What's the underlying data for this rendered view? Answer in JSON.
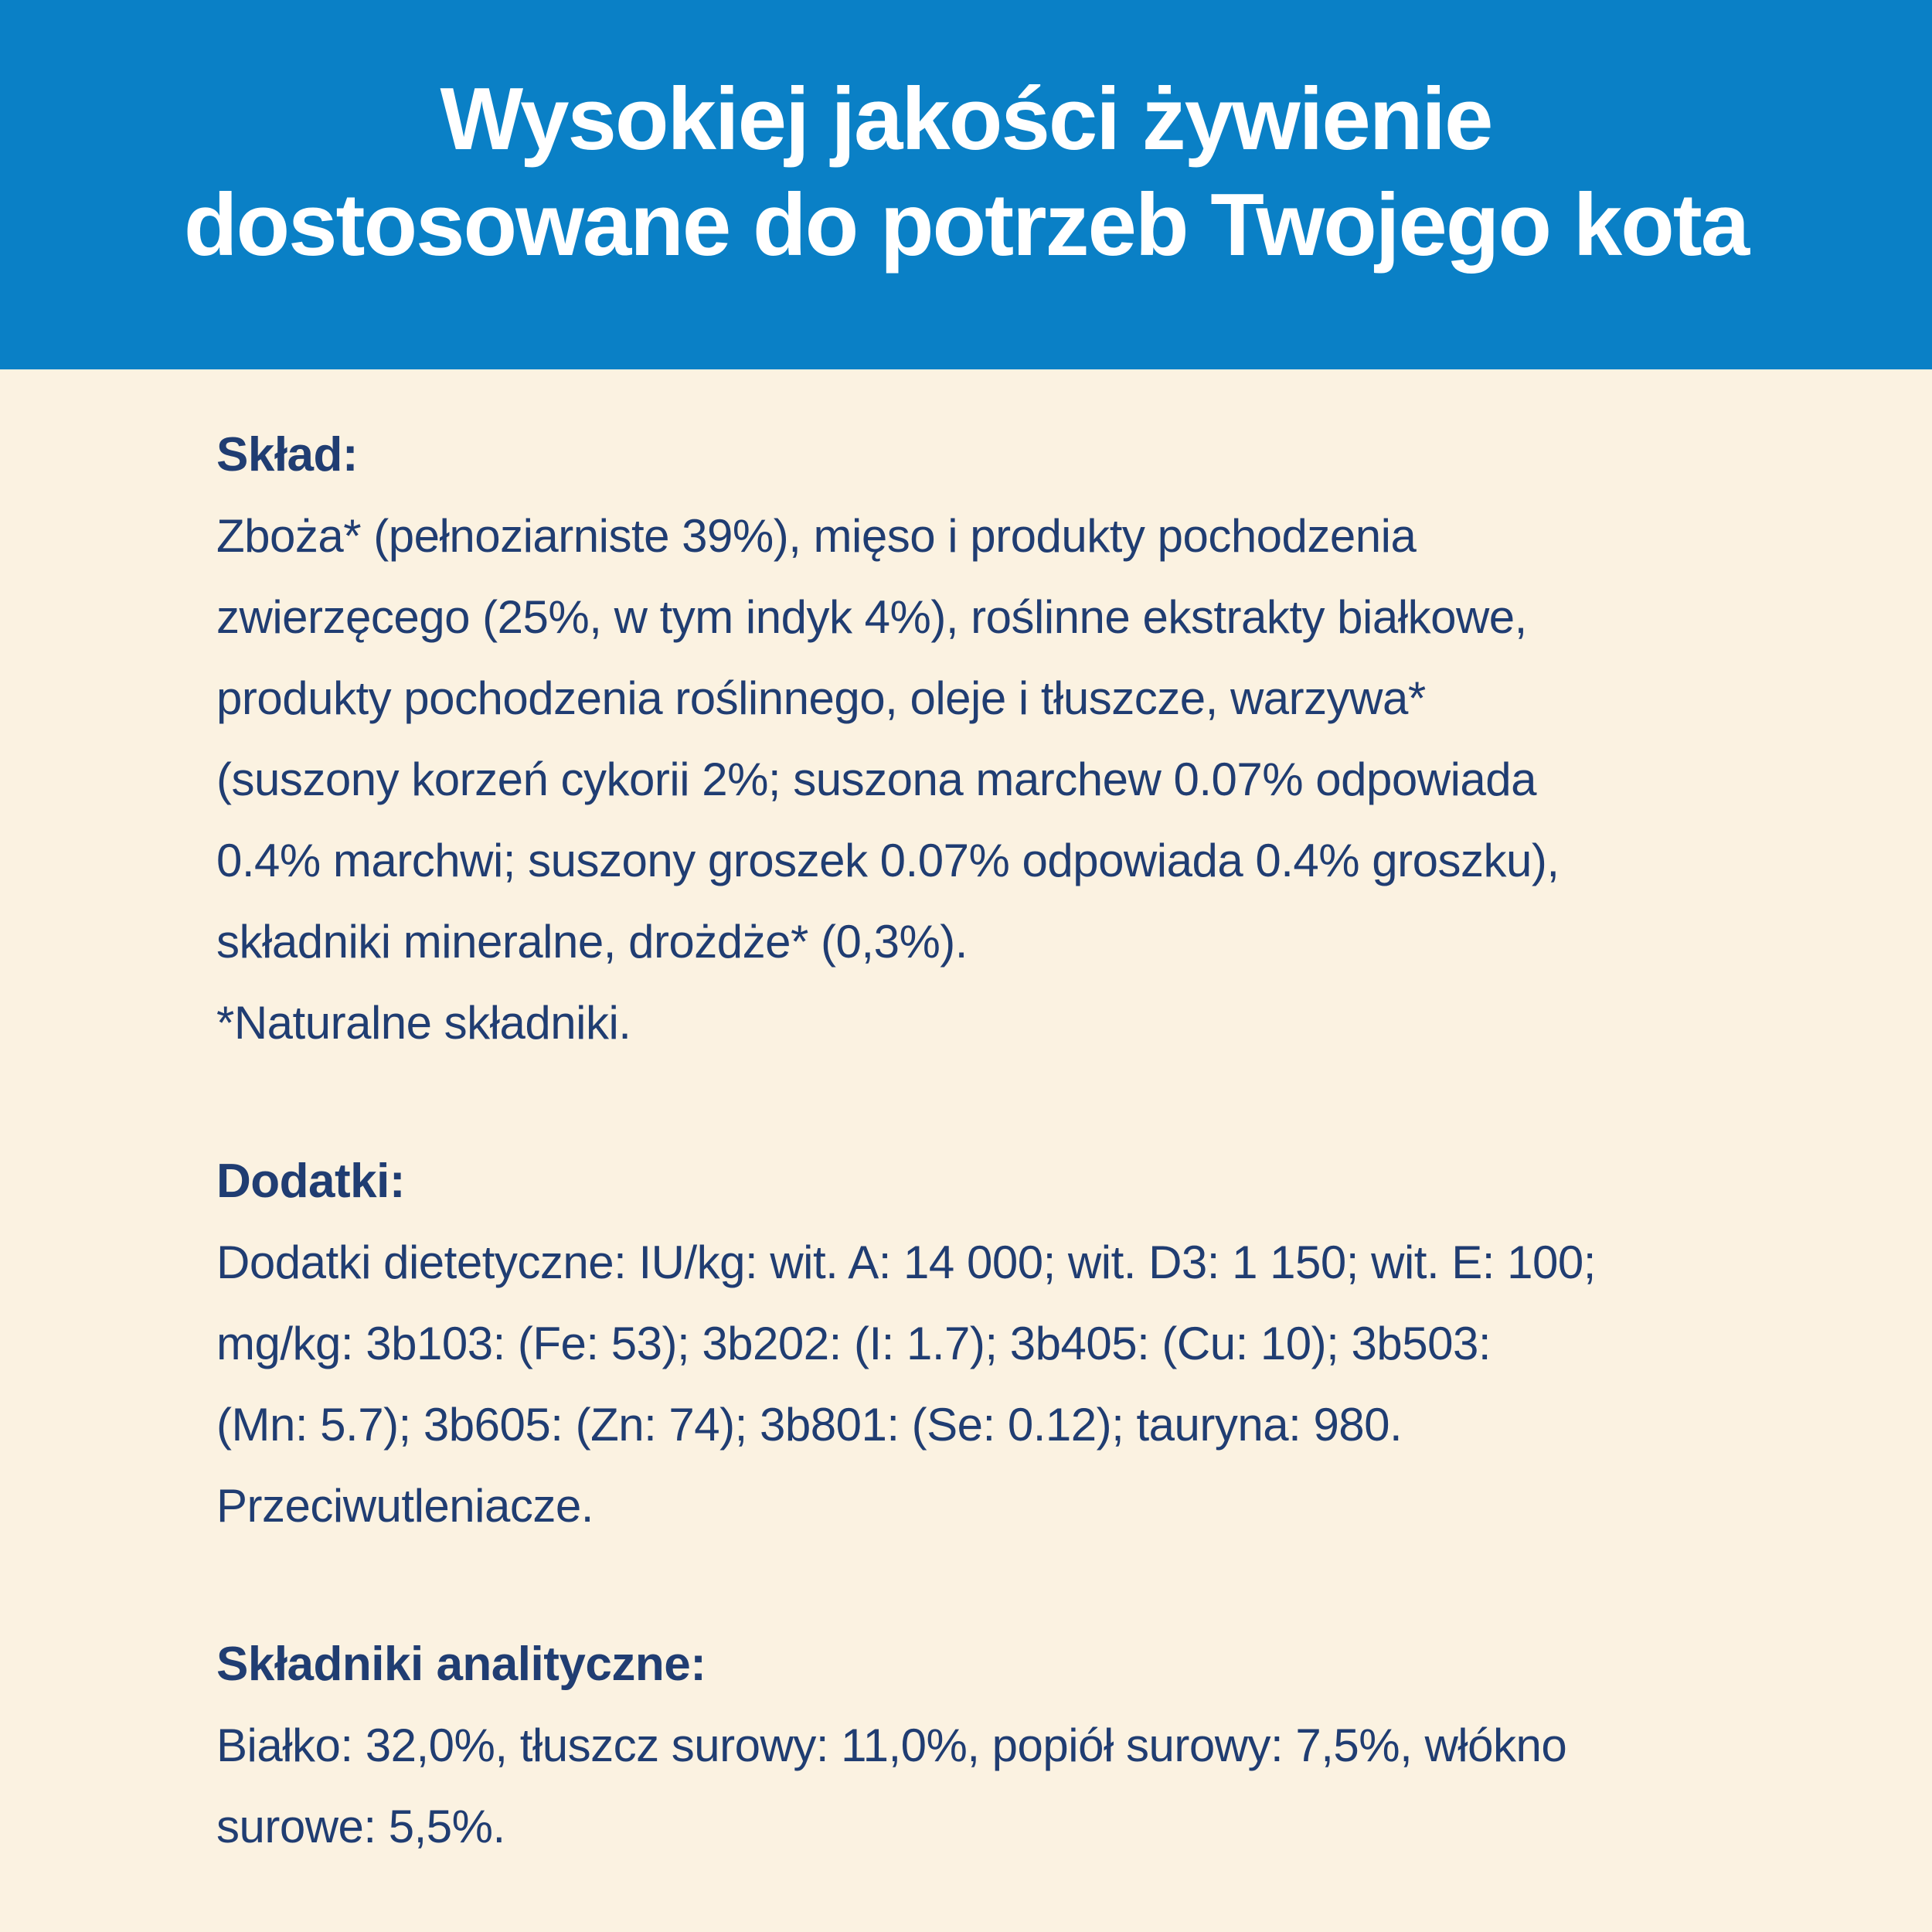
{
  "colors": {
    "header_bg": "#0a80c6",
    "body_bg": "#fbf2e1",
    "text_navy": "#203d72",
    "title_white": "#ffffff"
  },
  "header": {
    "title": "Wysokiej jakości żywienie\ndostosowane do potrzeb Twojego kota"
  },
  "sections": [
    {
      "heading": "Skład:",
      "body": "Zboża* (pełnoziarniste 39%), mięso i produkty pochodzenia\nzwierzęcego (25%, w tym indyk 4%), roślinne ekstrakty białkowe,\nprodukty pochodzenia roślinnego, oleje i tłuszcze, warzywa*\n(suszony korzeń cykorii 2%; suszona marchew 0.07% odpowiada\n0.4% marchwi; suszony groszek 0.07% odpowiada 0.4% groszku),\nskładniki mineralne, drożdże* (0,3%).\n*Naturalne składniki."
    },
    {
      "heading": "Dodatki:",
      "body": "Dodatki dietetyczne: IU/kg: wit. A: 14 000; wit. D3: 1 150; wit. E: 100;\nmg/kg: 3b103: (Fe: 53); 3b202: (I: 1.7); 3b405: (Cu: 10); 3b503:\n(Mn: 5.7); 3b605: (Zn: 74); 3b801: (Se: 0.12); tauryna: 980.\nPrzeciwutleniacze."
    },
    {
      "heading": "Składniki analityczne:",
      "body": "Białko: 32,0%, tłuszcz surowy: 11,0%, popiół surowy: 7,5%, włókno\nsurowe: 5,5%."
    }
  ]
}
